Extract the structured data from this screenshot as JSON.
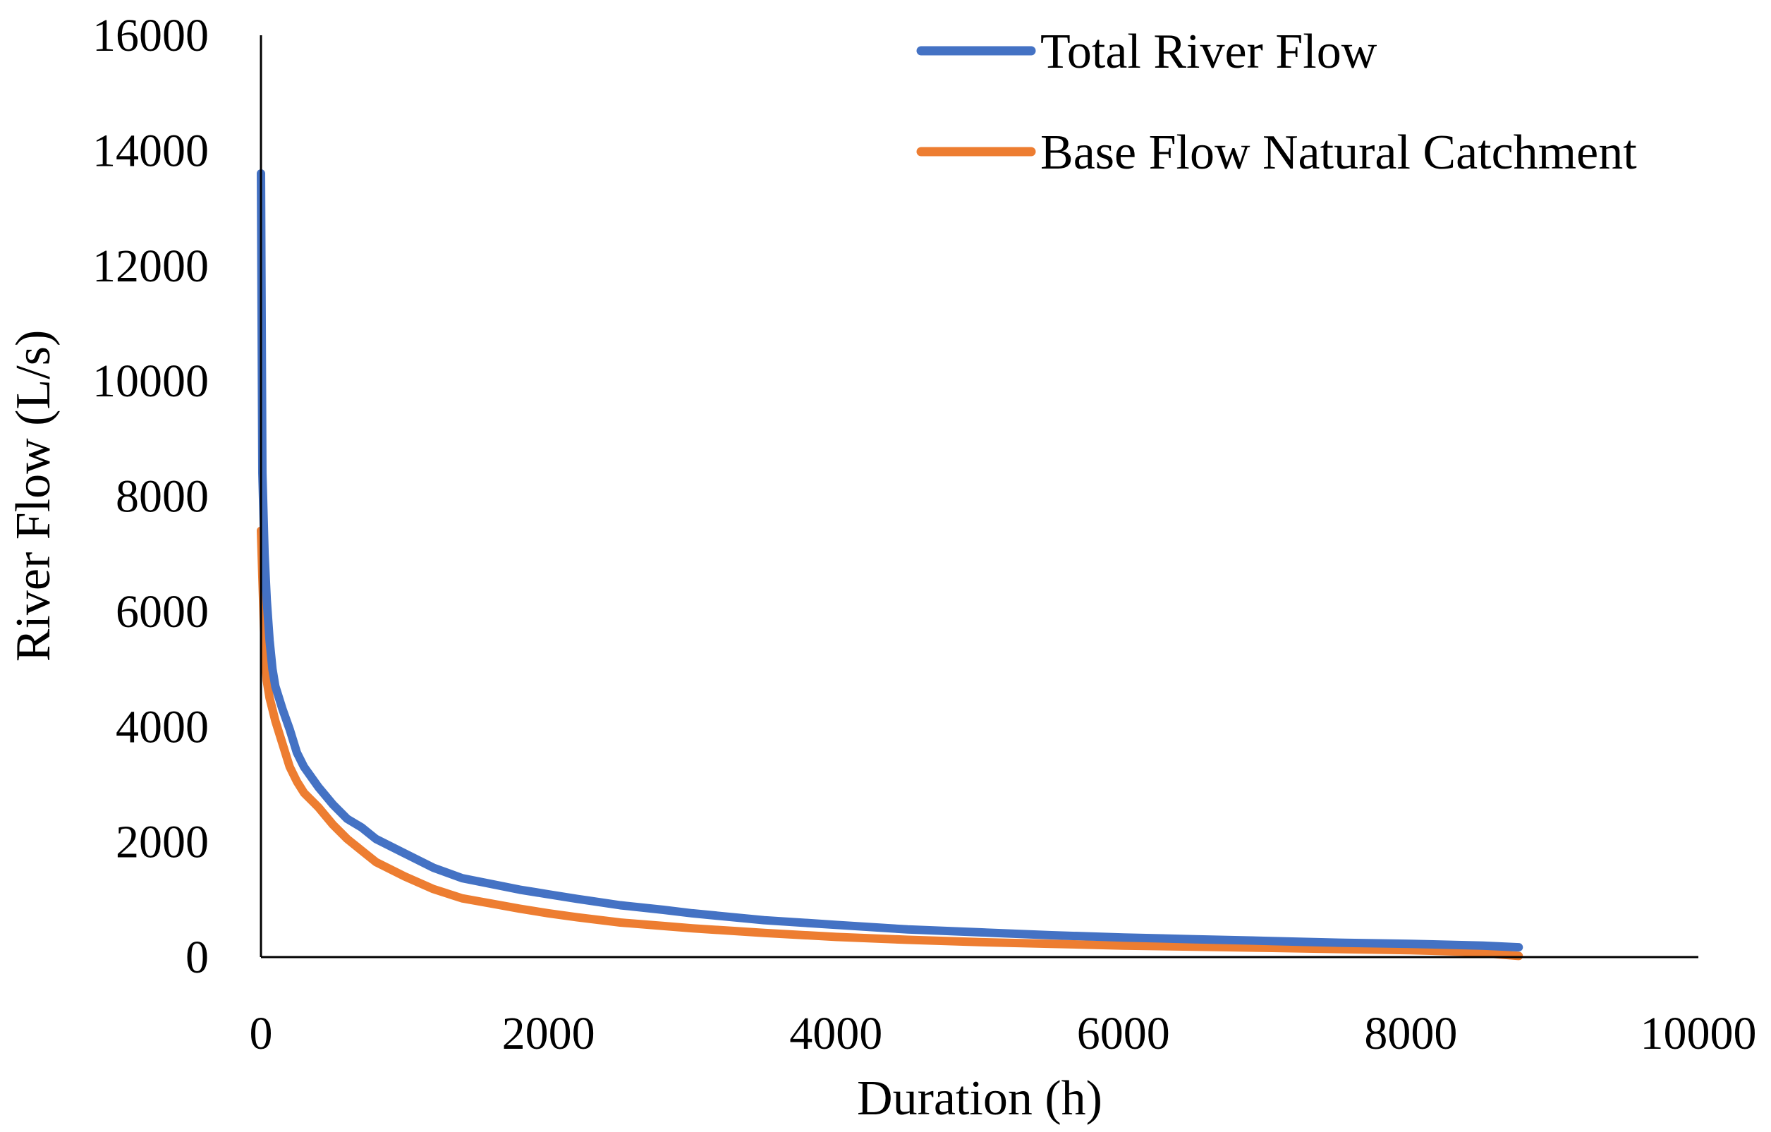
{
  "chart_data": {
    "type": "line",
    "title": "",
    "xlabel": "Duration (h)",
    "ylabel": "River Flow (L/s)",
    "xlim": [
      0,
      10000
    ],
    "ylim": [
      0,
      16000
    ],
    "x_ticks": [
      "0",
      "2000",
      "4000",
      "6000",
      "8000",
      "10000"
    ],
    "y_ticks": [
      "0",
      "2000",
      "4000",
      "6000",
      "8000",
      "10000",
      "12000",
      "14000",
      "16000"
    ],
    "grid": false,
    "legend_position": "top-right",
    "series": [
      {
        "name": "Total River Flow",
        "color": "#4472C4",
        "points": [
          [
            0,
            13600
          ],
          [
            10,
            8400
          ],
          [
            25,
            7000
          ],
          [
            40,
            6200
          ],
          [
            60,
            5500
          ],
          [
            80,
            5000
          ],
          [
            100,
            4700
          ],
          [
            150,
            4300
          ],
          [
            200,
            3950
          ],
          [
            250,
            3550
          ],
          [
            300,
            3300
          ],
          [
            400,
            2950
          ],
          [
            500,
            2650
          ],
          [
            600,
            2400
          ],
          [
            700,
            2250
          ],
          [
            800,
            2050
          ],
          [
            1000,
            1800
          ],
          [
            1200,
            1550
          ],
          [
            1400,
            1370
          ],
          [
            1600,
            1270
          ],
          [
            1800,
            1170
          ],
          [
            2000,
            1090
          ],
          [
            2200,
            1010
          ],
          [
            2500,
            900
          ],
          [
            2800,
            820
          ],
          [
            3000,
            760
          ],
          [
            3500,
            640
          ],
          [
            4000,
            560
          ],
          [
            4500,
            480
          ],
          [
            5000,
            430
          ],
          [
            5500,
            380
          ],
          [
            6000,
            340
          ],
          [
            6500,
            310
          ],
          [
            7000,
            280
          ],
          [
            7500,
            250
          ],
          [
            8000,
            230
          ],
          [
            8500,
            200
          ],
          [
            8750,
            170
          ]
        ]
      },
      {
        "name": "Base Flow Natural Catchment",
        "color": "#ED7D31",
        "points": [
          [
            0,
            7400
          ],
          [
            10,
            6600
          ],
          [
            25,
            5400
          ],
          [
            40,
            4800
          ],
          [
            60,
            4500
          ],
          [
            80,
            4300
          ],
          [
            100,
            4100
          ],
          [
            150,
            3700
          ],
          [
            200,
            3300
          ],
          [
            250,
            3050
          ],
          [
            300,
            2850
          ],
          [
            400,
            2600
          ],
          [
            500,
            2300
          ],
          [
            600,
            2050
          ],
          [
            700,
            1850
          ],
          [
            800,
            1650
          ],
          [
            1000,
            1400
          ],
          [
            1200,
            1180
          ],
          [
            1400,
            1020
          ],
          [
            1600,
            930
          ],
          [
            1800,
            840
          ],
          [
            2000,
            760
          ],
          [
            2200,
            690
          ],
          [
            2500,
            600
          ],
          [
            2800,
            540
          ],
          [
            3000,
            500
          ],
          [
            3500,
            420
          ],
          [
            4000,
            350
          ],
          [
            4500,
            300
          ],
          [
            5000,
            260
          ],
          [
            5500,
            230
          ],
          [
            6000,
            200
          ],
          [
            6500,
            180
          ],
          [
            7000,
            160
          ],
          [
            7500,
            140
          ],
          [
            8000,
            120
          ],
          [
            8400,
            90
          ],
          [
            8500,
            70
          ],
          [
            8750,
            20
          ]
        ]
      }
    ]
  }
}
